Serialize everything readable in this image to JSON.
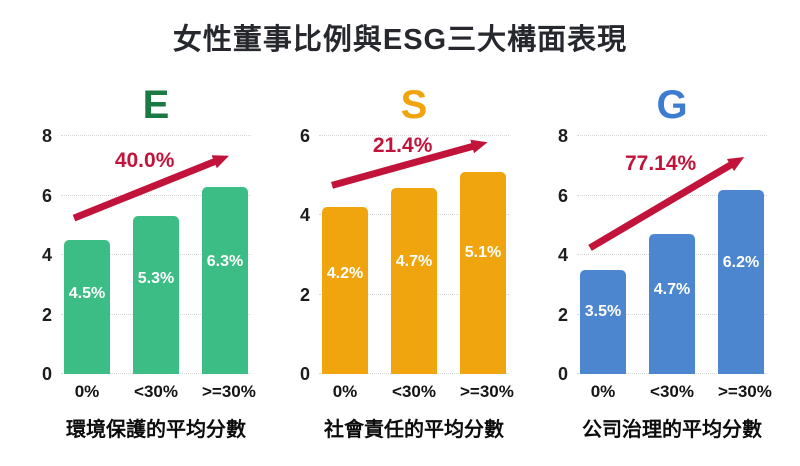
{
  "title": "女性董事比例與ESG三大構面表現",
  "colors": {
    "title_text": "#26282e",
    "arrow": "#c2143a",
    "axis_text": "#1d1d1d",
    "grid_line": "#d6d6d6",
    "bar_label_text": "#ffffff"
  },
  "chart_data": [
    {
      "type": "bar",
      "panel": "E",
      "panel_color": "#1a7a41",
      "bar_color": "#3cbd86",
      "growth_label": "40.0%",
      "categories": [
        "0%",
        "<30%",
        ">=30%"
      ],
      "values": [
        4.5,
        5.3,
        6.3
      ],
      "bar_labels": [
        "4.5%",
        "5.3%",
        "6.3%"
      ],
      "xlabel": "環境保護的平均分數",
      "ylim": [
        0,
        8
      ],
      "yticks": [
        0,
        2,
        4,
        6,
        8
      ],
      "grid": true,
      "legend": false
    },
    {
      "type": "bar",
      "panel": "S",
      "panel_color": "#f0a40e",
      "bar_color": "#f0a40e",
      "growth_label": "21.4%",
      "categories": [
        "0%",
        "<30%",
        ">=30%"
      ],
      "values": [
        4.2,
        4.7,
        5.1
      ],
      "bar_labels": [
        "4.2%",
        "4.7%",
        "5.1%"
      ],
      "xlabel": "社會責任的平均分數",
      "ylim": [
        0,
        6
      ],
      "yticks": [
        0,
        2,
        4,
        6
      ],
      "grid": true,
      "legend": false
    },
    {
      "type": "bar",
      "panel": "G",
      "panel_color": "#3d7cd0",
      "bar_color": "#4c86cf",
      "growth_label": "77.14%",
      "categories": [
        "0%",
        "<30%",
        ">=30%"
      ],
      "values": [
        3.5,
        4.7,
        6.2
      ],
      "bar_labels": [
        "3.5%",
        "4.7%",
        "6.2%"
      ],
      "xlabel": "公司治理的平均分數",
      "ylim": [
        0,
        8
      ],
      "yticks": [
        0,
        2,
        4,
        6,
        8
      ],
      "grid": true,
      "legend": false
    }
  ]
}
